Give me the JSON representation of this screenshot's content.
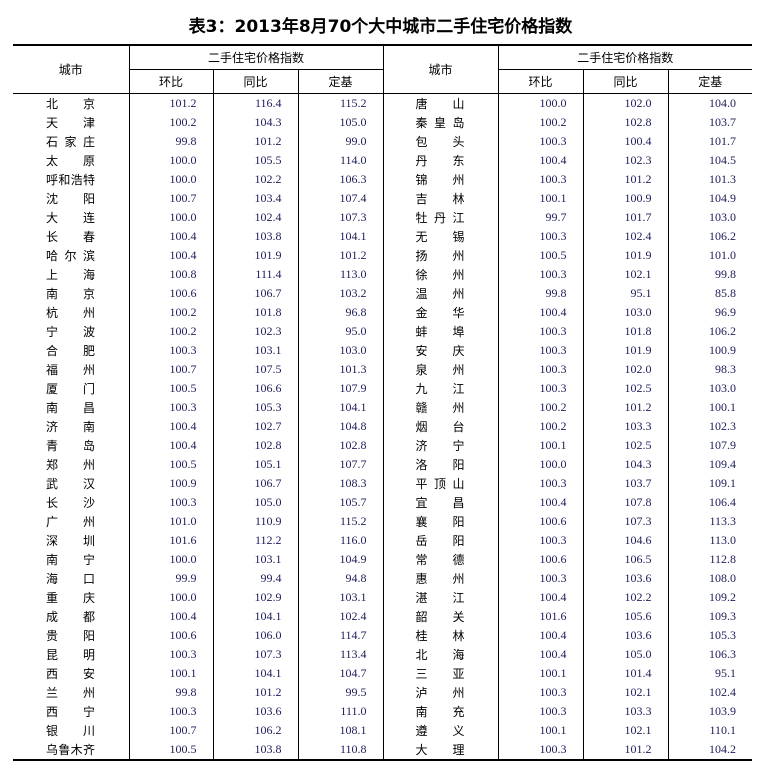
{
  "title": "表3：2013年8月70个大中城市二手住宅价格指数",
  "header": {
    "city": "城市",
    "group": "二手住宅价格指数",
    "mom": "环比",
    "yoy": "同比",
    "base": "定基"
  },
  "rows": [
    {
      "left": [
        "北京",
        "101.2",
        "116.4",
        "115.2"
      ],
      "right": [
        "唐山",
        "100.0",
        "102.0",
        "104.0"
      ]
    },
    {
      "left": [
        "天津",
        "100.2",
        "104.3",
        "105.0"
      ],
      "right": [
        "秦皇岛",
        "100.2",
        "102.8",
        "103.7"
      ]
    },
    {
      "left": [
        "石家庄",
        "99.8",
        "101.2",
        "99.0"
      ],
      "right": [
        "包头",
        "100.3",
        "100.4",
        "101.7"
      ]
    },
    {
      "left": [
        "太原",
        "100.0",
        "105.5",
        "114.0"
      ],
      "right": [
        "丹东",
        "100.4",
        "102.3",
        "104.5"
      ]
    },
    {
      "left": [
        "呼和浩特",
        "100.0",
        "102.2",
        "106.3"
      ],
      "right": [
        "锦州",
        "100.3",
        "101.2",
        "101.3"
      ]
    },
    {
      "left": [
        "沈阳",
        "100.7",
        "103.4",
        "107.4"
      ],
      "right": [
        "吉林",
        "100.1",
        "100.9",
        "104.9"
      ]
    },
    {
      "left": [
        "大连",
        "100.0",
        "102.4",
        "107.3"
      ],
      "right": [
        "牡丹江",
        "99.7",
        "101.7",
        "103.0"
      ]
    },
    {
      "left": [
        "长春",
        "100.4",
        "103.8",
        "104.1"
      ],
      "right": [
        "无锡",
        "100.3",
        "102.4",
        "106.2"
      ]
    },
    {
      "left": [
        "哈尔滨",
        "100.4",
        "101.9",
        "101.2"
      ],
      "right": [
        "扬州",
        "100.5",
        "101.9",
        "101.0"
      ]
    },
    {
      "left": [
        "上海",
        "100.8",
        "111.4",
        "113.0"
      ],
      "right": [
        "徐州",
        "100.3",
        "102.1",
        "99.8"
      ]
    },
    {
      "left": [
        "南京",
        "100.6",
        "106.7",
        "103.2"
      ],
      "right": [
        "温州",
        "99.8",
        "95.1",
        "85.8"
      ]
    },
    {
      "left": [
        "杭州",
        "100.2",
        "101.8",
        "96.8"
      ],
      "right": [
        "金华",
        "100.4",
        "103.0",
        "96.9"
      ]
    },
    {
      "left": [
        "宁波",
        "100.2",
        "102.3",
        "95.0"
      ],
      "right": [
        "蚌埠",
        "100.3",
        "101.8",
        "106.2"
      ]
    },
    {
      "left": [
        "合肥",
        "100.3",
        "103.1",
        "103.0"
      ],
      "right": [
        "安庆",
        "100.3",
        "101.9",
        "100.9"
      ]
    },
    {
      "left": [
        "福州",
        "100.7",
        "107.5",
        "101.3"
      ],
      "right": [
        "泉州",
        "100.3",
        "102.0",
        "98.3"
      ]
    },
    {
      "left": [
        "厦门",
        "100.5",
        "106.6",
        "107.9"
      ],
      "right": [
        "九江",
        "100.3",
        "102.5",
        "103.0"
      ]
    },
    {
      "left": [
        "南昌",
        "100.3",
        "105.3",
        "104.1"
      ],
      "right": [
        "赣州",
        "100.2",
        "101.2",
        "100.1"
      ]
    },
    {
      "left": [
        "济南",
        "100.4",
        "102.7",
        "104.8"
      ],
      "right": [
        "烟台",
        "100.2",
        "103.3",
        "102.3"
      ]
    },
    {
      "left": [
        "青岛",
        "100.4",
        "102.8",
        "102.8"
      ],
      "right": [
        "济宁",
        "100.1",
        "102.5",
        "107.9"
      ]
    },
    {
      "left": [
        "郑州",
        "100.5",
        "105.1",
        "107.7"
      ],
      "right": [
        "洛阳",
        "100.0",
        "104.3",
        "109.4"
      ]
    },
    {
      "left": [
        "武汉",
        "100.9",
        "106.7",
        "108.3"
      ],
      "right": [
        "平顶山",
        "100.3",
        "103.7",
        "109.1"
      ]
    },
    {
      "left": [
        "长沙",
        "100.3",
        "105.0",
        "105.7"
      ],
      "right": [
        "宜昌",
        "100.4",
        "107.8",
        "106.4"
      ]
    },
    {
      "left": [
        "广州",
        "101.0",
        "110.9",
        "115.2"
      ],
      "right": [
        "襄阳",
        "100.6",
        "107.3",
        "113.3"
      ]
    },
    {
      "left": [
        "深圳",
        "101.6",
        "112.2",
        "116.0"
      ],
      "right": [
        "岳阳",
        "100.3",
        "104.6",
        "113.0"
      ]
    },
    {
      "left": [
        "南宁",
        "100.0",
        "103.1",
        "104.9"
      ],
      "right": [
        "常德",
        "100.6",
        "106.5",
        "112.8"
      ]
    },
    {
      "left": [
        "海口",
        "99.9",
        "99.4",
        "94.8"
      ],
      "right": [
        "惠州",
        "100.3",
        "103.6",
        "108.0"
      ]
    },
    {
      "left": [
        "重庆",
        "100.0",
        "102.9",
        "103.1"
      ],
      "right": [
        "湛江",
        "100.4",
        "102.2",
        "109.2"
      ]
    },
    {
      "left": [
        "成都",
        "100.4",
        "104.1",
        "102.4"
      ],
      "right": [
        "韶关",
        "101.6",
        "105.6",
        "109.3"
      ]
    },
    {
      "left": [
        "贵阳",
        "100.6",
        "106.0",
        "114.7"
      ],
      "right": [
        "桂林",
        "100.4",
        "103.6",
        "105.3"
      ]
    },
    {
      "left": [
        "昆明",
        "100.3",
        "107.3",
        "113.4"
      ],
      "right": [
        "北海",
        "100.4",
        "105.0",
        "106.3"
      ]
    },
    {
      "left": [
        "西安",
        "100.1",
        "104.1",
        "104.7"
      ],
      "right": [
        "三亚",
        "100.1",
        "101.4",
        "95.1"
      ]
    },
    {
      "left": [
        "兰州",
        "99.8",
        "101.2",
        "99.5"
      ],
      "right": [
        "泸州",
        "100.3",
        "102.1",
        "102.4"
      ]
    },
    {
      "left": [
        "西宁",
        "100.3",
        "103.6",
        "111.0"
      ],
      "right": [
        "南充",
        "100.3",
        "103.3",
        "103.9"
      ]
    },
    {
      "left": [
        "银川",
        "100.7",
        "106.2",
        "108.1"
      ],
      "right": [
        "遵义",
        "100.1",
        "102.1",
        "110.1"
      ]
    },
    {
      "left": [
        "乌鲁木齐",
        "100.5",
        "103.8",
        "110.8"
      ],
      "right": [
        "大理",
        "100.3",
        "101.2",
        "104.2"
      ]
    }
  ]
}
